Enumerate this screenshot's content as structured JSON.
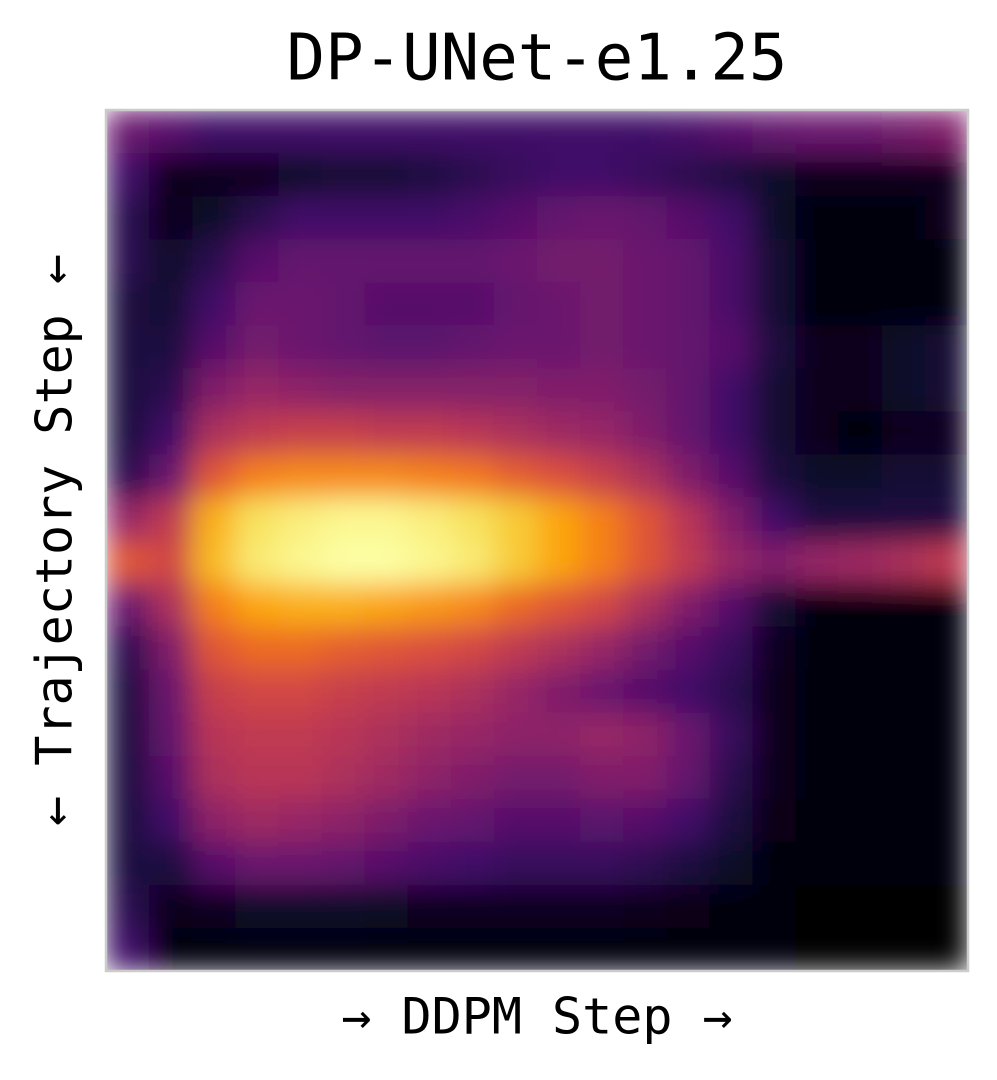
{
  "chart_data": {
    "type": "heatmap",
    "title": "DP-UNet-e1.25",
    "xlabel": "→ DDPM Step →",
    "ylabel": "← Trajectory Step ←",
    "colormap": "inferno",
    "values": [
      [
        0.3,
        0.25,
        0.2,
        0.2,
        0.2,
        0.2,
        0.2,
        0.2,
        0.2,
        0.2,
        0.2,
        0.2,
        0.2,
        0.22,
        0.25,
        0.28,
        0.3,
        0.3,
        0.32,
        0.35
      ],
      [
        0.2,
        0.05,
        0.05,
        0.05,
        0.08,
        0.1,
        0.1,
        0.12,
        0.15,
        0.18,
        0.2,
        0.2,
        0.18,
        0.15,
        0.12,
        0.08,
        0.05,
        0.05,
        0.05,
        0.05
      ],
      [
        0.15,
        0.05,
        0.08,
        0.15,
        0.2,
        0.2,
        0.2,
        0.2,
        0.22,
        0.25,
        0.28,
        0.3,
        0.28,
        0.25,
        0.2,
        0.08,
        0.03,
        0.02,
        0.03,
        0.05
      ],
      [
        0.15,
        0.08,
        0.15,
        0.25,
        0.28,
        0.28,
        0.28,
        0.28,
        0.28,
        0.3,
        0.32,
        0.32,
        0.3,
        0.28,
        0.22,
        0.1,
        0.03,
        0.02,
        0.02,
        0.03
      ],
      [
        0.12,
        0.1,
        0.2,
        0.3,
        0.3,
        0.28,
        0.25,
        0.25,
        0.25,
        0.28,
        0.3,
        0.32,
        0.3,
        0.28,
        0.22,
        0.1,
        0.03,
        0.02,
        0.02,
        0.02
      ],
      [
        0.12,
        0.12,
        0.25,
        0.32,
        0.3,
        0.28,
        0.26,
        0.26,
        0.28,
        0.3,
        0.3,
        0.32,
        0.3,
        0.28,
        0.25,
        0.12,
        0.05,
        0.05,
        0.08,
        0.1
      ],
      [
        0.12,
        0.15,
        0.35,
        0.4,
        0.38,
        0.36,
        0.36,
        0.36,
        0.36,
        0.36,
        0.35,
        0.35,
        0.32,
        0.28,
        0.2,
        0.1,
        0.05,
        0.05,
        0.08,
        0.1
      ],
      [
        0.12,
        0.2,
        0.45,
        0.5,
        0.52,
        0.52,
        0.5,
        0.5,
        0.48,
        0.45,
        0.42,
        0.4,
        0.35,
        0.28,
        0.2,
        0.1,
        0.05,
        0.03,
        0.05,
        0.05
      ],
      [
        0.15,
        0.3,
        0.6,
        0.7,
        0.72,
        0.72,
        0.72,
        0.7,
        0.68,
        0.62,
        0.58,
        0.52,
        0.45,
        0.35,
        0.25,
        0.12,
        0.08,
        0.08,
        0.1,
        0.1
      ],
      [
        0.4,
        0.5,
        0.8,
        0.9,
        0.93,
        0.95,
        0.95,
        0.93,
        0.9,
        0.85,
        0.78,
        0.7,
        0.6,
        0.48,
        0.35,
        0.2,
        0.12,
        0.12,
        0.12,
        0.12
      ],
      [
        0.6,
        0.55,
        0.82,
        0.92,
        0.95,
        0.97,
        0.97,
        0.95,
        0.92,
        0.85,
        0.78,
        0.7,
        0.6,
        0.5,
        0.4,
        0.35,
        0.4,
        0.42,
        0.45,
        0.5
      ],
      [
        0.3,
        0.45,
        0.7,
        0.78,
        0.8,
        0.8,
        0.78,
        0.75,
        0.72,
        0.65,
        0.6,
        0.55,
        0.45,
        0.35,
        0.25,
        0.1,
        0.03,
        0.02,
        0.02,
        0.02
      ],
      [
        0.15,
        0.35,
        0.6,
        0.65,
        0.65,
        0.62,
        0.6,
        0.58,
        0.55,
        0.5,
        0.45,
        0.4,
        0.32,
        0.25,
        0.18,
        0.06,
        0.02,
        0.02,
        0.02,
        0.02
      ],
      [
        0.12,
        0.3,
        0.52,
        0.55,
        0.55,
        0.52,
        0.5,
        0.48,
        0.45,
        0.4,
        0.35,
        0.3,
        0.25,
        0.2,
        0.15,
        0.05,
        0.02,
        0.02,
        0.02,
        0.02
      ],
      [
        0.12,
        0.28,
        0.48,
        0.5,
        0.5,
        0.48,
        0.45,
        0.42,
        0.4,
        0.38,
        0.38,
        0.4,
        0.38,
        0.3,
        0.18,
        0.05,
        0.02,
        0.02,
        0.02,
        0.02
      ],
      [
        0.12,
        0.25,
        0.45,
        0.48,
        0.48,
        0.45,
        0.42,
        0.38,
        0.35,
        0.32,
        0.32,
        0.35,
        0.35,
        0.28,
        0.15,
        0.05,
        0.02,
        0.02,
        0.02,
        0.02
      ],
      [
        0.12,
        0.2,
        0.38,
        0.42,
        0.4,
        0.38,
        0.34,
        0.3,
        0.28,
        0.25,
        0.25,
        0.26,
        0.25,
        0.2,
        0.12,
        0.04,
        0.02,
        0.02,
        0.02,
        0.02
      ],
      [
        0.12,
        0.12,
        0.25,
        0.3,
        0.3,
        0.28,
        0.25,
        0.22,
        0.2,
        0.18,
        0.18,
        0.18,
        0.16,
        0.12,
        0.08,
        0.03,
        0.02,
        0.02,
        0.02,
        0.02
      ],
      [
        0.15,
        0.05,
        0.06,
        0.08,
        0.08,
        0.08,
        0.07,
        0.06,
        0.06,
        0.06,
        0.06,
        0.06,
        0.05,
        0.04,
        0.03,
        0.02,
        0.01,
        0.01,
        0.01,
        0.01
      ],
      [
        0.2,
        0.03,
        0.02,
        0.02,
        0.02,
        0.02,
        0.02,
        0.02,
        0.02,
        0.02,
        0.02,
        0.02,
        0.02,
        0.02,
        0.02,
        0.02,
        0.01,
        0.01,
        0.01,
        0.01
      ]
    ]
  }
}
